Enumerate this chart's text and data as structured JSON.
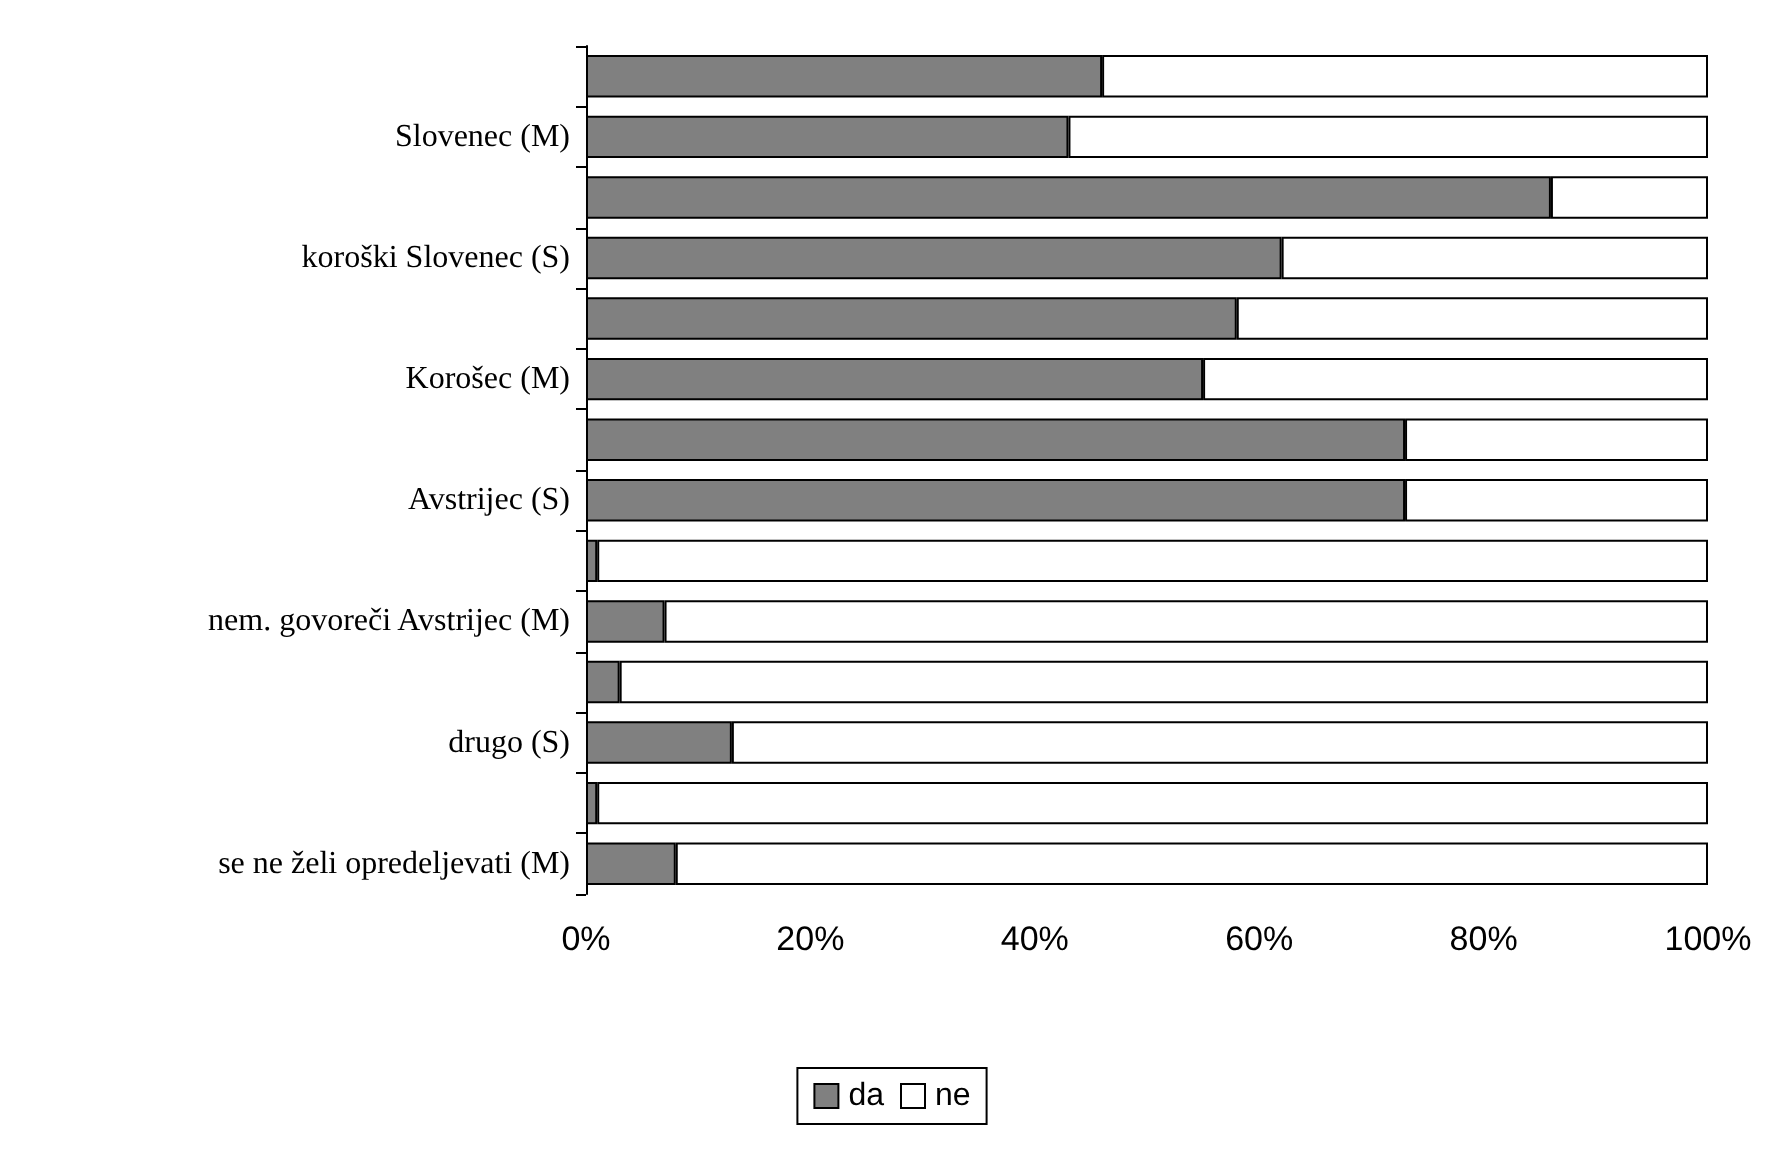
{
  "chart_data": {
    "type": "bar",
    "orientation": "horizontal",
    "stacked": true,
    "categories": [
      null,
      "Slovenec (M)",
      null,
      "koroški Slovenec (S)",
      null,
      "Korošec (M)",
      null,
      "Avstrijec (S)",
      null,
      "nem. govoreči Avstrijec (M)",
      null,
      "drugo (S)",
      null,
      "se ne želi opredeljevati (M)"
    ],
    "series": [
      {
        "name": "da",
        "color": "#808080",
        "values": [
          46,
          43,
          86,
          62,
          58,
          55,
          73,
          73,
          1,
          7,
          3,
          13,
          1,
          8
        ]
      },
      {
        "name": "ne",
        "color": "#ffffff",
        "values": [
          54,
          57,
          14,
          38,
          42,
          45,
          27,
          27,
          99,
          93,
          97,
          87,
          99,
          92
        ]
      }
    ],
    "xlim": [
      0,
      100
    ],
    "xticks": [
      {
        "value": 0,
        "label": "0%"
      },
      {
        "value": 20,
        "label": "20%"
      },
      {
        "value": 40,
        "label": "40%"
      },
      {
        "value": 60,
        "label": "60%"
      },
      {
        "value": 80,
        "label": "80%"
      },
      {
        "value": 100,
        "label": "100%"
      }
    ],
    "legend": "bottom",
    "grid": false
  }
}
